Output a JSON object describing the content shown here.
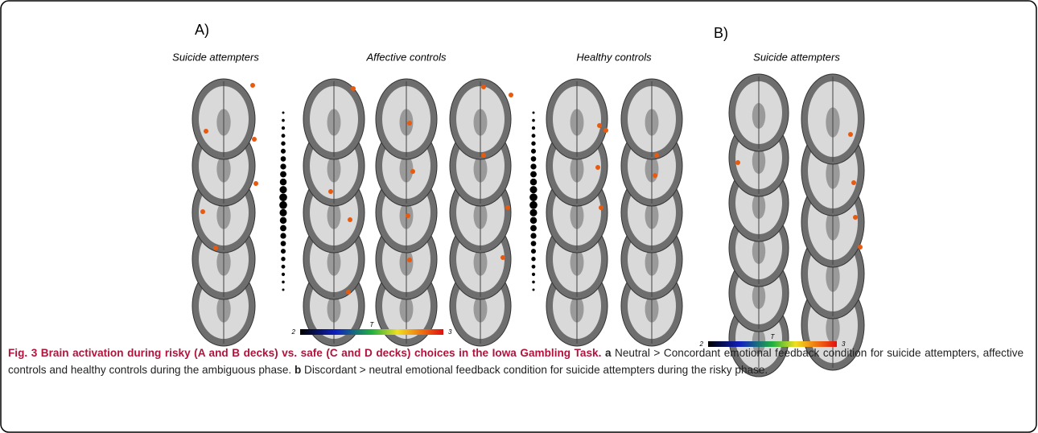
{
  "panel_a": {
    "label": "A)",
    "groups": [
      "Suicide attempters",
      "Affective controls",
      "Healthy controls"
    ],
    "colorbar": {
      "min": 2,
      "label": "T",
      "max": 3
    }
  },
  "panel_b": {
    "label": "B)",
    "groups": [
      "Suicide attempters"
    ],
    "colorbar": {
      "min": 2,
      "label": "T",
      "max": 3
    }
  },
  "caption": {
    "title": "Fig. 3 Brain activation during risky (A and B decks) vs. safe (C and D decks) choices in the Iowa Gambling Task.",
    "a_label": "a",
    "a_text": "Neutral > Concordant emotional feedback condition for suicide attempters, affective controls and healthy controls during the ambiguous phase.",
    "b_label": "b",
    "b_text": "Discordant > neutral emotional feedback condition for suicide attempters during the risky phase."
  }
}
